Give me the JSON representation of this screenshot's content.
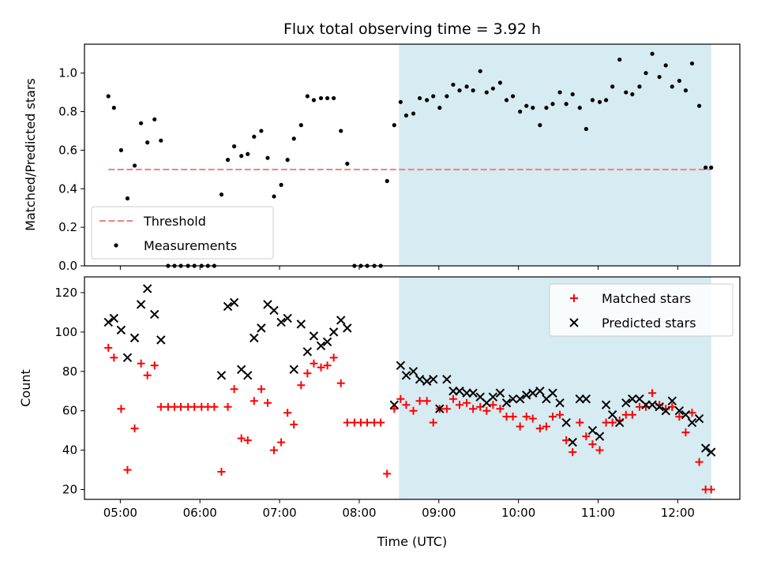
{
  "chart_data": [
    {
      "type": "scatter",
      "title": "Flux total observing time = 3.92 h",
      "ylabel": "Matched/Predicted stars",
      "xlabel": "",
      "xlim": [
        4.55,
        12.78
      ],
      "ylim": [
        0,
        1.15
      ],
      "xticks": [
        5,
        6,
        7,
        8,
        9,
        10,
        11,
        12
      ],
      "yticks": [
        0.0,
        0.2,
        0.4,
        0.6,
        0.8,
        1.0
      ],
      "ytick_labels": [
        "0.0",
        "0.2",
        "0.4",
        "0.6",
        "0.8",
        "1.0"
      ],
      "shaded_region": {
        "x0": 8.5,
        "x1": 12.42,
        "color": "#add8e6"
      },
      "legend": {
        "position": "lower-left",
        "entries": [
          "Threshold",
          "Measurements"
        ]
      },
      "series": [
        {
          "name": "Threshold",
          "style": "dashed-line",
          "color": "#f08080",
          "x": [
            4.85,
            12.42
          ],
          "y": [
            0.5,
            0.5
          ]
        },
        {
          "name": "Measurements",
          "style": "dot",
          "color": "#000000",
          "x": [
            4.85,
            4.92,
            5.01,
            5.09,
            5.18,
            5.26,
            5.34,
            5.43,
            5.51,
            5.6,
            5.68,
            5.76,
            5.85,
            5.93,
            6.02,
            6.1,
            6.18,
            6.27,
            6.35,
            6.43,
            6.52,
            6.6,
            6.68,
            6.77,
            6.85,
            6.93,
            7.02,
            7.1,
            7.18,
            7.27,
            7.35,
            7.43,
            7.52,
            7.6,
            7.68,
            7.77,
            7.85,
            7.94,
            8.02,
            8.1,
            8.19,
            8.27,
            8.35,
            8.44,
            8.52,
            8.59,
            8.68,
            8.76,
            8.85,
            8.93,
            9.01,
            9.1,
            9.18,
            9.26,
            9.35,
            9.43,
            9.52,
            9.6,
            9.68,
            9.77,
            9.85,
            9.93,
            10.02,
            10.1,
            10.18,
            10.27,
            10.35,
            10.43,
            10.52,
            10.6,
            10.68,
            10.77,
            10.85,
            10.93,
            11.02,
            11.1,
            11.18,
            11.27,
            11.35,
            11.43,
            11.52,
            11.6,
            11.68,
            11.77,
            11.85,
            11.93,
            12.02,
            12.1,
            12.18,
            12.27,
            12.35,
            12.42
          ],
          "y": [
            0.88,
            0.82,
            0.6,
            0.35,
            0.52,
            0.74,
            0.64,
            0.76,
            0.65,
            0.0,
            0.0,
            0.0,
            0.0,
            0.0,
            0.0,
            0.0,
            0.0,
            0.37,
            0.55,
            0.62,
            0.57,
            0.58,
            0.67,
            0.7,
            0.56,
            0.36,
            0.42,
            0.55,
            0.66,
            0.73,
            0.88,
            0.86,
            0.87,
            0.87,
            0.87,
            0.7,
            0.53,
            0.0,
            0.0,
            0.0,
            0.0,
            0.0,
            0.44,
            0.73,
            0.85,
            0.78,
            0.79,
            0.87,
            0.86,
            0.88,
            0.82,
            0.88,
            0.94,
            0.91,
            0.93,
            0.91,
            1.01,
            0.9,
            0.92,
            0.95,
            0.86,
            0.88,
            0.8,
            0.83,
            0.82,
            0.73,
            0.82,
            0.84,
            0.9,
            0.84,
            0.89,
            0.82,
            0.71,
            0.86,
            0.85,
            0.86,
            0.93,
            1.07,
            0.9,
            0.89,
            0.93,
            1.0,
            1.1,
            0.98,
            1.04,
            0.93,
            0.96,
            0.91,
            1.05,
            0.83,
            0.51,
            0.51
          ]
        }
      ]
    },
    {
      "type": "scatter",
      "title": "",
      "ylabel": "Count",
      "xlabel": "Time (UTC)",
      "xlim": [
        4.55,
        12.78
      ],
      "ylim": [
        15,
        128
      ],
      "xticks": [
        5,
        6,
        7,
        8,
        9,
        10,
        11,
        12
      ],
      "xtick_labels": [
        "05:00",
        "06:00",
        "07:00",
        "08:00",
        "09:00",
        "10:00",
        "11:00",
        "12:00"
      ],
      "yticks": [
        20,
        40,
        60,
        80,
        100,
        120
      ],
      "ytick_labels": [
        "20",
        "40",
        "60",
        "80",
        "100",
        "120"
      ],
      "shaded_region": {
        "x0": 8.5,
        "x1": 12.42,
        "color": "#add8e6"
      },
      "legend": {
        "position": "upper-right",
        "entries": [
          "Matched stars",
          "Predicted stars"
        ]
      },
      "series": [
        {
          "name": "Matched stars",
          "marker": "plus",
          "color": "#ff0000",
          "x": [
            4.85,
            4.92,
            5.01,
            5.09,
            5.18,
            5.26,
            5.34,
            5.43,
            5.51,
            5.6,
            5.68,
            5.76,
            5.85,
            5.93,
            6.02,
            6.1,
            6.18,
            6.27,
            6.35,
            6.43,
            6.52,
            6.6,
            6.68,
            6.77,
            6.85,
            6.93,
            7.02,
            7.1,
            7.18,
            7.27,
            7.35,
            7.43,
            7.52,
            7.6,
            7.68,
            7.77,
            7.85,
            7.94,
            8.02,
            8.1,
            8.19,
            8.27,
            8.35,
            8.44,
            8.52,
            8.59,
            8.68,
            8.76,
            8.85,
            8.93,
            9.01,
            9.1,
            9.18,
            9.26,
            9.35,
            9.43,
            9.52,
            9.6,
            9.68,
            9.77,
            9.85,
            9.93,
            10.02,
            10.1,
            10.18,
            10.27,
            10.35,
            10.43,
            10.52,
            10.6,
            10.68,
            10.77,
            10.85,
            10.93,
            11.02,
            11.1,
            11.18,
            11.27,
            11.35,
            11.43,
            11.52,
            11.6,
            11.68,
            11.77,
            11.85,
            11.93,
            12.02,
            12.1,
            12.18,
            12.27,
            12.35,
            12.42
          ],
          "y": [
            92,
            87,
            61,
            30,
            51,
            84,
            78,
            83,
            62,
            62,
            62,
            62,
            62,
            62,
            62,
            62,
            62,
            29,
            62,
            71,
            46,
            45,
            65,
            71,
            64,
            40,
            44,
            59,
            53,
            73,
            79,
            84,
            82,
            83,
            87,
            74,
            54,
            54,
            54,
            54,
            54,
            54,
            28,
            61,
            66,
            63,
            60,
            65,
            65,
            54,
            61,
            61,
            66,
            63,
            64,
            61,
            62,
            60,
            63,
            61,
            57,
            57,
            52,
            57,
            56,
            51,
            52,
            57,
            58,
            45,
            39,
            54,
            47,
            43,
            40,
            54,
            54,
            55,
            58,
            58,
            62,
            62,
            69,
            63,
            61,
            62,
            57,
            49,
            59,
            34,
            20,
            20
          ]
        },
        {
          "name": "Predicted stars",
          "marker": "x",
          "color": "#000000",
          "x": [
            4.85,
            4.92,
            5.01,
            5.09,
            5.18,
            5.26,
            5.34,
            5.43,
            5.51,
            6.27,
            6.35,
            6.43,
            6.52,
            6.6,
            6.68,
            6.77,
            6.85,
            6.93,
            7.02,
            7.1,
            7.18,
            7.27,
            7.35,
            7.43,
            7.52,
            7.6,
            7.68,
            7.77,
            7.85,
            8.44,
            8.52,
            8.59,
            8.68,
            8.76,
            8.85,
            8.93,
            9.01,
            9.1,
            9.18,
            9.26,
            9.35,
            9.43,
            9.52,
            9.6,
            9.68,
            9.77,
            9.85,
            9.93,
            10.02,
            10.1,
            10.18,
            10.27,
            10.35,
            10.43,
            10.52,
            10.6,
            10.68,
            10.77,
            10.85,
            10.93,
            11.02,
            11.1,
            11.18,
            11.27,
            11.35,
            11.43,
            11.52,
            11.6,
            11.68,
            11.77,
            11.85,
            11.93,
            12.02,
            12.1,
            12.18,
            12.27,
            12.35,
            12.42
          ],
          "y": [
            105,
            107,
            101,
            87,
            97,
            114,
            122,
            109,
            96,
            78,
            113,
            115,
            81,
            78,
            97,
            102,
            114,
            111,
            105,
            107,
            81,
            104,
            90,
            98,
            93,
            95,
            100,
            106,
            102,
            63,
            83,
            78,
            80,
            76,
            75,
            76,
            61,
            76,
            70,
            70,
            69,
            69,
            67,
            64,
            67,
            69,
            64,
            66,
            66,
            68,
            69,
            70,
            66,
            69,
            64,
            54,
            44,
            66,
            66,
            50,
            47,
            63,
            58,
            54,
            64,
            66,
            66,
            63,
            63,
            62,
            60,
            65,
            60,
            58,
            54,
            56,
            41,
            39
          ]
        }
      ]
    }
  ]
}
